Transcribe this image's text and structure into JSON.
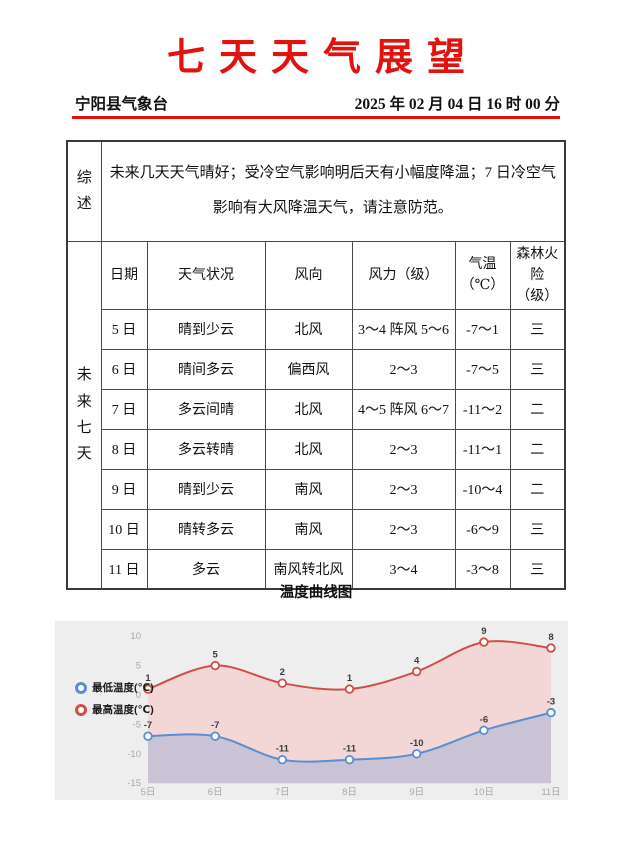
{
  "header": {
    "title": "七天天气展望",
    "station": "宁阳县气象台",
    "datetime": "2025 年 02 月 04 日 16 时 00 分"
  },
  "summary": {
    "label": "综述",
    "text": "未来几天天气晴好；受冷空气影响明后天有小幅度降温；7 日冷空气影响有大风降温天气，请注意防范。"
  },
  "forecast": {
    "label": "未来七天",
    "columns": [
      "日期",
      "天气状况",
      "风向",
      "风力（级）",
      "气温\n（℃）",
      "森林火\n险（级）"
    ],
    "rows": [
      {
        "date": "5 日",
        "weather": "晴到少云",
        "wind_dir": "北风",
        "wind_force": "3～4 阵风 5～6",
        "temp": "-7～1",
        "fire_risk": "三"
      },
      {
        "date": "6 日",
        "weather": "晴间多云",
        "wind_dir": "偏西风",
        "wind_force": "2～3",
        "temp": "-7～5",
        "fire_risk": "三"
      },
      {
        "date": "7 日",
        "weather": "多云间晴",
        "wind_dir": "北风",
        "wind_force": "4～5 阵风 6～7",
        "temp": "-11～2",
        "fire_risk": "二"
      },
      {
        "date": "8 日",
        "weather": "多云转晴",
        "wind_dir": "北风",
        "wind_force": "2～3",
        "temp": "-11～1",
        "fire_risk": "二"
      },
      {
        "date": "9 日",
        "weather": "晴到少云",
        "wind_dir": "南风",
        "wind_force": "2～3",
        "temp": "-10～4",
        "fire_risk": "二"
      },
      {
        "date": "10 日",
        "weather": "晴转多云",
        "wind_dir": "南风",
        "wind_force": "2～3",
        "temp": "-6～9",
        "fire_risk": "三"
      },
      {
        "date": "11 日",
        "weather": "多云",
        "wind_dir": "南风转北风",
        "wind_force": "3～4",
        "temp": "-3～8",
        "fire_risk": "三"
      }
    ]
  },
  "chart": {
    "title": "温度曲线图"
  },
  "chart_data": {
    "type": "line",
    "title": "温度曲线图",
    "x": [
      "5日",
      "6日",
      "7日",
      "8日",
      "9日",
      "10日",
      "11日"
    ],
    "series": [
      {
        "name": "最低温度(℃)",
        "values": [
          -7,
          -7,
          -11,
          -11,
          -10,
          -6,
          -3
        ],
        "color": "#5b8dd0",
        "fill": "#c9c3d5"
      },
      {
        "name": "最高温度(℃)",
        "values": [
          1,
          5,
          2,
          1,
          4,
          9,
          8
        ],
        "color": "#cf5049",
        "fill": "#f2d7d6"
      }
    ],
    "yticks": [
      10,
      5,
      0,
      -5,
      -10,
      -15
    ],
    "ylim": [
      -15,
      12.5
    ],
    "xlabel": "",
    "ylabel": "",
    "grid": false,
    "area": true,
    "legend_position": "left",
    "background": "#eeeeee"
  },
  "colors": {
    "accent_red": "#e3120e",
    "table_border": "#4a4a4a"
  }
}
